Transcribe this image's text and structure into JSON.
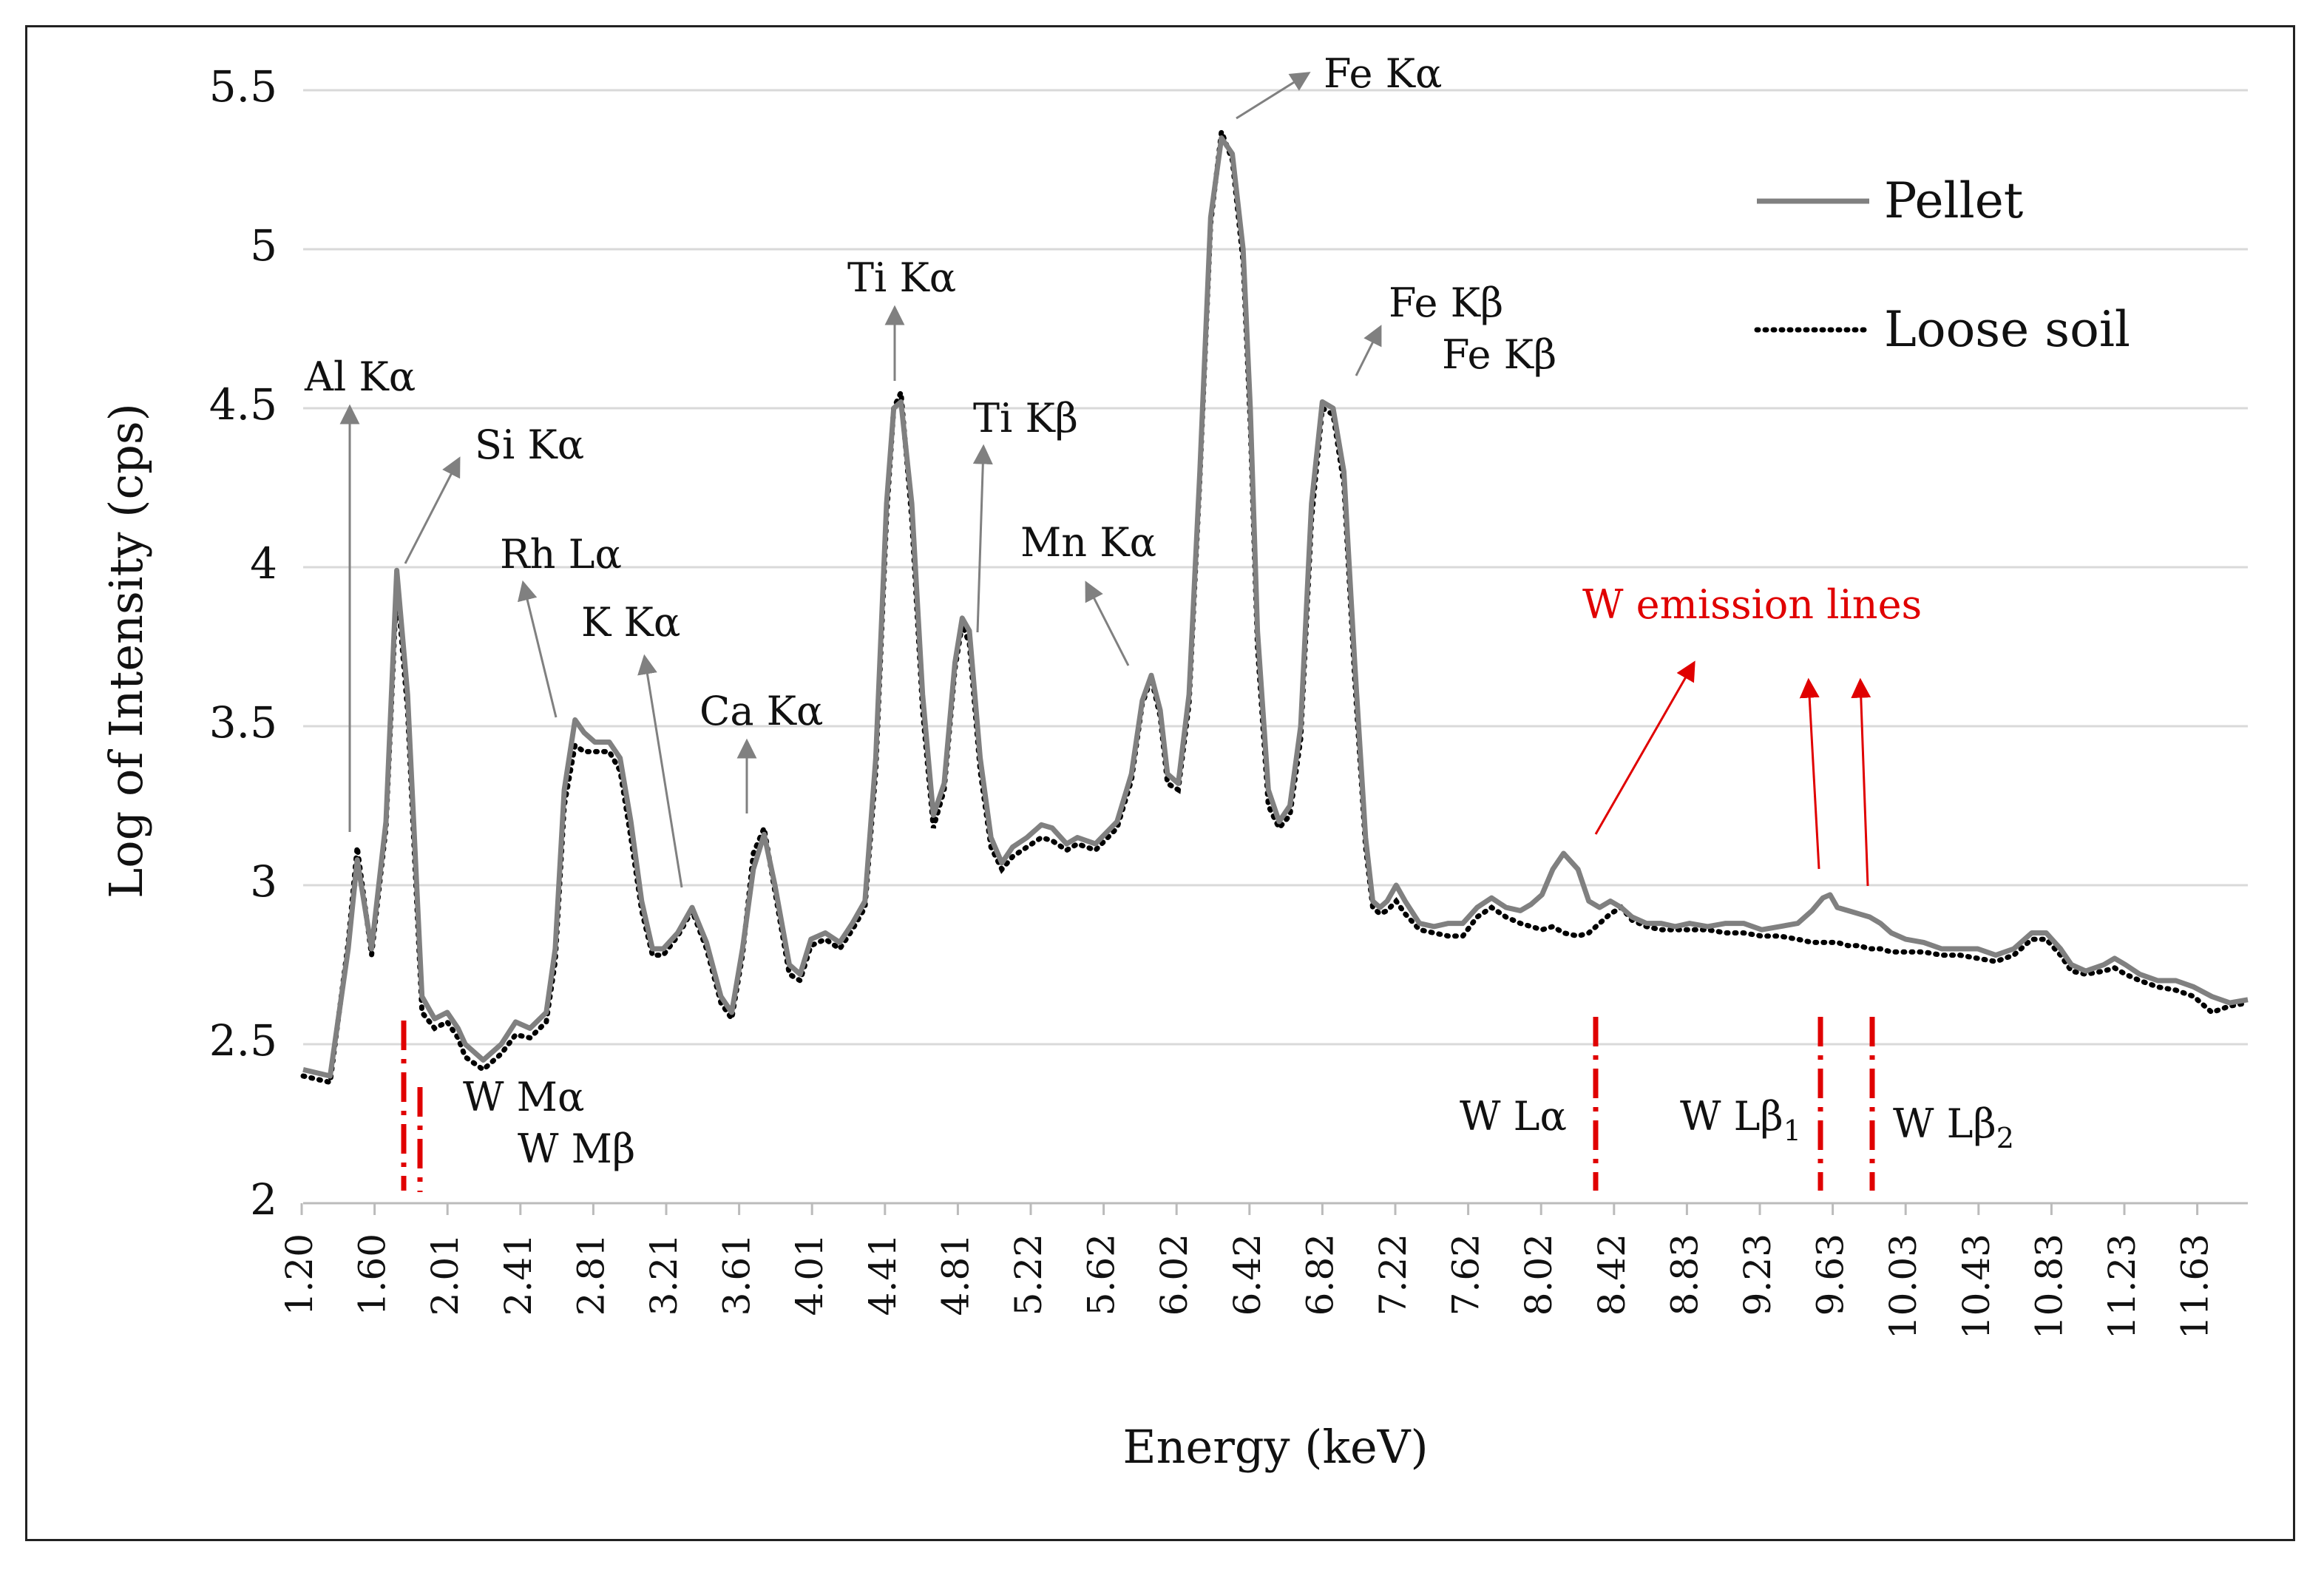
{
  "chart_data": {
    "type": "line",
    "title": "",
    "xlabel": "Energy (keV)",
    "ylabel": "Log of Intensity (cps)",
    "xlim": [
      1.2,
      12.0
    ],
    "ylim": [
      2,
      5.5
    ],
    "grid": true,
    "y_ticks": [
      "2",
      "2.5",
      "3",
      "3.5",
      "4",
      "4.5",
      "5",
      "5.5"
    ],
    "x_ticks": [
      "1.20",
      "1.60",
      "2.01",
      "2.41",
      "2.81",
      "3.21",
      "3.61",
      "4.01",
      "4.41",
      "4.81",
      "5.22",
      "5.62",
      "6.02",
      "6.42",
      "6.82",
      "7.22",
      "7.62",
      "8.02",
      "8.42",
      "8.83",
      "9.23",
      "9.63",
      "10.03",
      "10.43",
      "10.83",
      "11.23",
      "11.63"
    ],
    "legend": {
      "position": "top-right",
      "entries": [
        "Pellet",
        "Loose soil"
      ]
    },
    "series": [
      {
        "name": "Pellet",
        "style": "solid",
        "color": "#808080",
        "x": [
          1.2,
          1.35,
          1.45,
          1.5,
          1.58,
          1.66,
          1.72,
          1.78,
          1.86,
          1.93,
          2.0,
          2.06,
          2.1,
          2.2,
          2.3,
          2.38,
          2.46,
          2.55,
          2.6,
          2.65,
          2.71,
          2.76,
          2.82,
          2.9,
          2.96,
          3.02,
          3.08,
          3.14,
          3.2,
          3.28,
          3.36,
          3.44,
          3.52,
          3.58,
          3.64,
          3.7,
          3.76,
          3.82,
          3.9,
          3.96,
          4.02,
          4.1,
          4.18,
          4.25,
          4.32,
          4.38,
          4.44,
          4.48,
          4.52,
          4.58,
          4.64,
          4.7,
          4.76,
          4.82,
          4.86,
          4.9,
          4.96,
          5.02,
          5.08,
          5.14,
          5.22,
          5.3,
          5.36,
          5.44,
          5.5,
          5.6,
          5.72,
          5.8,
          5.86,
          5.91,
          5.96,
          6.0,
          6.06,
          6.12,
          6.18,
          6.24,
          6.3,
          6.36,
          6.42,
          6.46,
          6.5,
          6.56,
          6.62,
          6.68,
          6.74,
          6.8,
          6.86,
          6.92,
          6.98,
          7.04,
          7.1,
          7.14,
          7.18,
          7.22,
          7.27,
          7.32,
          7.4,
          7.48,
          7.56,
          7.64,
          7.72,
          7.8,
          7.88,
          7.96,
          8.02,
          8.08,
          8.14,
          8.2,
          8.28,
          8.34,
          8.4,
          8.46,
          8.52,
          8.58,
          8.66,
          8.74,
          8.82,
          8.9,
          9.0,
          9.1,
          9.2,
          9.3,
          9.4,
          9.5,
          9.58,
          9.64,
          9.68,
          9.72,
          9.78,
          9.84,
          9.9,
          9.96,
          10.02,
          10.1,
          10.2,
          10.3,
          10.4,
          10.5,
          10.6,
          10.7,
          10.8,
          10.88,
          10.96,
          11.02,
          11.1,
          11.2,
          11.26,
          11.32,
          11.4,
          11.5,
          11.6,
          11.7,
          11.8,
          11.9,
          12.0
        ],
        "y": [
          2.42,
          2.4,
          2.8,
          3.08,
          2.8,
          3.2,
          3.99,
          3.6,
          2.65,
          2.58,
          2.6,
          2.55,
          2.5,
          2.45,
          2.5,
          2.57,
          2.55,
          2.6,
          2.8,
          3.3,
          3.52,
          3.48,
          3.45,
          3.45,
          3.4,
          3.2,
          2.95,
          2.8,
          2.8,
          2.85,
          2.93,
          2.82,
          2.65,
          2.6,
          2.8,
          3.05,
          3.16,
          3.0,
          2.75,
          2.72,
          2.83,
          2.85,
          2.82,
          2.88,
          2.95,
          3.4,
          4.2,
          4.5,
          4.52,
          4.2,
          3.6,
          3.22,
          3.32,
          3.7,
          3.84,
          3.8,
          3.4,
          3.15,
          3.07,
          3.12,
          3.15,
          3.19,
          3.18,
          3.13,
          3.15,
          3.13,
          3.2,
          3.35,
          3.58,
          3.66,
          3.55,
          3.35,
          3.32,
          3.6,
          4.3,
          5.1,
          5.35,
          5.3,
          5.0,
          4.5,
          3.8,
          3.3,
          3.2,
          3.25,
          3.5,
          4.2,
          4.52,
          4.5,
          4.3,
          3.7,
          3.15,
          2.95,
          2.93,
          2.95,
          3.0,
          2.95,
          2.88,
          2.87,
          2.88,
          2.88,
          2.93,
          2.96,
          2.93,
          2.92,
          2.94,
          2.97,
          3.05,
          3.1,
          3.05,
          2.95,
          2.93,
          2.95,
          2.93,
          2.9,
          2.88,
          2.88,
          2.87,
          2.88,
          2.87,
          2.88,
          2.88,
          2.86,
          2.87,
          2.88,
          2.92,
          2.96,
          2.97,
          2.93,
          2.92,
          2.91,
          2.9,
          2.88,
          2.85,
          2.83,
          2.82,
          2.8,
          2.8,
          2.8,
          2.78,
          2.8,
          2.85,
          2.85,
          2.8,
          2.75,
          2.73,
          2.75,
          2.77,
          2.75,
          2.72,
          2.7,
          2.7,
          2.68,
          2.65,
          2.63,
          2.64
        ]
      },
      {
        "name": "Loose soil",
        "style": "dotted",
        "color": "#000000",
        "x": [
          1.2,
          1.35,
          1.45,
          1.5,
          1.58,
          1.66,
          1.72,
          1.78,
          1.86,
          1.93,
          2.0,
          2.06,
          2.1,
          2.2,
          2.3,
          2.38,
          2.46,
          2.55,
          2.6,
          2.65,
          2.71,
          2.76,
          2.82,
          2.9,
          2.96,
          3.02,
          3.08,
          3.14,
          3.2,
          3.28,
          3.36,
          3.44,
          3.52,
          3.58,
          3.64,
          3.7,
          3.76,
          3.82,
          3.9,
          3.96,
          4.02,
          4.1,
          4.18,
          4.25,
          4.32,
          4.38,
          4.44,
          4.48,
          4.52,
          4.58,
          4.64,
          4.7,
          4.76,
          4.82,
          4.86,
          4.9,
          4.96,
          5.02,
          5.08,
          5.14,
          5.22,
          5.3,
          5.36,
          5.44,
          5.5,
          5.6,
          5.72,
          5.8,
          5.86,
          5.91,
          5.96,
          6.0,
          6.06,
          6.12,
          6.18,
          6.24,
          6.3,
          6.36,
          6.42,
          6.46,
          6.5,
          6.56,
          6.62,
          6.68,
          6.74,
          6.8,
          6.86,
          6.92,
          6.98,
          7.04,
          7.1,
          7.14,
          7.18,
          7.22,
          7.27,
          7.32,
          7.4,
          7.48,
          7.56,
          7.64,
          7.72,
          7.8,
          7.88,
          7.96,
          8.02,
          8.08,
          8.14,
          8.2,
          8.28,
          8.34,
          8.4,
          8.46,
          8.52,
          8.58,
          8.66,
          8.74,
          8.82,
          8.9,
          9.0,
          9.1,
          9.2,
          9.3,
          9.4,
          9.5,
          9.58,
          9.64,
          9.68,
          9.72,
          9.78,
          9.84,
          9.9,
          9.96,
          10.02,
          10.1,
          10.2,
          10.3,
          10.4,
          10.5,
          10.6,
          10.7,
          10.8,
          10.88,
          10.96,
          11.02,
          11.1,
          11.2,
          11.26,
          11.32,
          11.4,
          11.5,
          11.6,
          11.7,
          11.8,
          11.9,
          12.0
        ],
        "y": [
          2.4,
          2.38,
          2.82,
          3.12,
          2.78,
          3.18,
          3.95,
          3.55,
          2.6,
          2.55,
          2.57,
          2.52,
          2.46,
          2.42,
          2.47,
          2.53,
          2.52,
          2.57,
          2.76,
          3.25,
          3.44,
          3.42,
          3.42,
          3.42,
          3.36,
          3.15,
          2.92,
          2.78,
          2.78,
          2.84,
          2.92,
          2.8,
          2.63,
          2.58,
          2.78,
          3.1,
          3.18,
          2.98,
          2.72,
          2.7,
          2.81,
          2.83,
          2.8,
          2.86,
          2.93,
          3.36,
          4.16,
          4.5,
          4.55,
          4.15,
          3.55,
          3.18,
          3.3,
          3.68,
          3.82,
          3.76,
          3.36,
          3.12,
          3.05,
          3.09,
          3.12,
          3.15,
          3.14,
          3.11,
          3.13,
          3.11,
          3.18,
          3.33,
          3.57,
          3.65,
          3.53,
          3.32,
          3.3,
          3.57,
          4.28,
          5.08,
          5.37,
          5.28,
          4.96,
          4.45,
          3.75,
          3.25,
          3.18,
          3.22,
          3.46,
          4.15,
          4.5,
          4.48,
          4.26,
          3.65,
          3.12,
          2.93,
          2.91,
          2.92,
          2.95,
          2.91,
          2.86,
          2.85,
          2.84,
          2.84,
          2.9,
          2.93,
          2.9,
          2.88,
          2.87,
          2.86,
          2.87,
          2.85,
          2.84,
          2.85,
          2.88,
          2.91,
          2.93,
          2.89,
          2.87,
          2.86,
          2.86,
          2.86,
          2.86,
          2.85,
          2.85,
          2.84,
          2.84,
          2.83,
          2.82,
          2.82,
          2.82,
          2.82,
          2.81,
          2.81,
          2.8,
          2.8,
          2.79,
          2.79,
          2.79,
          2.78,
          2.78,
          2.77,
          2.76,
          2.78,
          2.83,
          2.83,
          2.78,
          2.73,
          2.72,
          2.73,
          2.74,
          2.72,
          2.7,
          2.68,
          2.67,
          2.65,
          2.6,
          2.62,
          2.63
        ]
      }
    ],
    "annotations": [
      {
        "id": "al-ka",
        "text": "Al Kα",
        "x": 1.5,
        "y": 3.12
      },
      {
        "id": "si-ka",
        "text": "Si Kα",
        "x": 1.74,
        "y": 3.99
      },
      {
        "id": "rh-la",
        "text": "Rh Lα",
        "x": 2.68,
        "y": 3.52
      },
      {
        "id": "k-ka",
        "text": "K Kα",
        "x": 3.24,
        "y": 2.93
      },
      {
        "id": "ca-ka",
        "text": "Ca Kα",
        "x": 3.7,
        "y": 3.16
      },
      {
        "id": "ti-ka",
        "text": "Ti Kα",
        "x": 4.52,
        "y": 4.52
      },
      {
        "id": "ti-kb",
        "text": "Ti Kβ",
        "x": 4.88,
        "y": 3.84
      },
      {
        "id": "mn-ka",
        "text": "Mn Kα",
        "x": 5.9,
        "y": 3.66
      },
      {
        "id": "fe-ka",
        "text": "Fe Kα",
        "x": 6.42,
        "y": 5.35
      },
      {
        "id": "fe-kb",
        "text": "Fe Kβ",
        "x": 6.92,
        "y": 4.52
      },
      {
        "id": "fe-kb2",
        "text": "Fe Kβ"
      },
      {
        "id": "w-emission",
        "text": "W emission lines"
      },
      {
        "id": "w-ma",
        "text": "W Mα",
        "line_x": 1.77
      },
      {
        "id": "w-mb",
        "text": "W Mβ",
        "line_x": 1.84
      },
      {
        "id": "w-la",
        "text": "W Lα",
        "line_x": 8.4
      },
      {
        "id": "w-lb1",
        "text": "W Lβ",
        "subscript": "1",
        "line_x": 9.67
      },
      {
        "id": "w-lb2",
        "text": "W Lβ",
        "subscript": "2",
        "line_x": 9.96
      }
    ]
  }
}
